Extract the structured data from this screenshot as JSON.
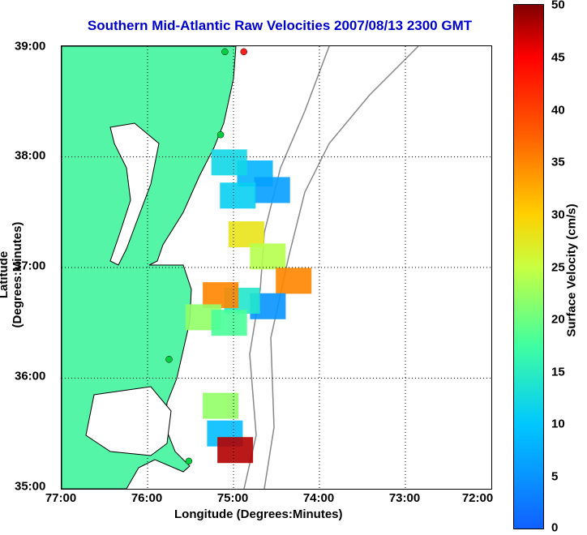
{
  "title": "Southern Mid-Atlantic Raw Velocities 2007/08/13 2300 GMT",
  "x_axis": {
    "label": "Longitude (Degrees:Minutes)",
    "ticks": [
      "77:00",
      "76:00",
      "75:00",
      "74:00",
      "73:00",
      "72:00"
    ]
  },
  "y_axis": {
    "label": "Latitude (Degrees:Minutes)",
    "ticks": [
      "39:00",
      "38:00",
      "37:00",
      "36:00",
      "35:00"
    ]
  },
  "colorbar": {
    "label": "Surface Velocity (cm/s)",
    "ticks": [
      "50",
      "45",
      "40",
      "35",
      "30",
      "25",
      "20",
      "15",
      "10",
      "5",
      "0"
    ],
    "range": [
      0,
      50
    ]
  },
  "colors": {
    "land": "#55f5a8",
    "coast": "#000000",
    "bathymetry": "#888888",
    "station": "#00d040",
    "title": "#0000cc"
  },
  "map_data": {
    "lon_range": [
      -77,
      -72
    ],
    "lat_range": [
      35,
      39
    ],
    "grid": true,
    "stations": [
      {
        "lon": -75.1,
        "lat": 38.95,
        "color": "#00d040"
      },
      {
        "lon": -74.88,
        "lat": 38.95,
        "color": "#ff2020"
      },
      {
        "lon": -75.15,
        "lat": 38.2,
        "color": "#00d040"
      },
      {
        "lon": -75.75,
        "lat": 36.17,
        "color": "#00d040"
      },
      {
        "lon": -75.52,
        "lat": 35.25,
        "color": "#00d040"
      }
    ],
    "velocity_patches": [
      {
        "lon": -74.75,
        "lat": 37.85,
        "value": 8
      },
      {
        "lon": -74.55,
        "lat": 37.7,
        "value": 6
      },
      {
        "lon": -74.95,
        "lat": 37.65,
        "value": 11
      },
      {
        "lon": -75.05,
        "lat": 37.95,
        "value": 12
      },
      {
        "lon": -74.85,
        "lat": 37.3,
        "value": 28
      },
      {
        "lon": -74.6,
        "lat": 37.1,
        "value": 24
      },
      {
        "lon": -74.3,
        "lat": 36.88,
        "value": 35
      },
      {
        "lon": -74.6,
        "lat": 36.65,
        "value": 5
      },
      {
        "lon": -74.9,
        "lat": 36.7,
        "value": 14
      },
      {
        "lon": -75.15,
        "lat": 36.75,
        "value": 35
      },
      {
        "lon": -75.35,
        "lat": 36.55,
        "value": 22
      },
      {
        "lon": -75.05,
        "lat": 36.5,
        "value": 18
      },
      {
        "lon": -75.15,
        "lat": 35.75,
        "value": 22
      },
      {
        "lon": -75.1,
        "lat": 35.5,
        "value": 9
      },
      {
        "lon": -74.98,
        "lat": 35.35,
        "value": 48
      }
    ]
  }
}
